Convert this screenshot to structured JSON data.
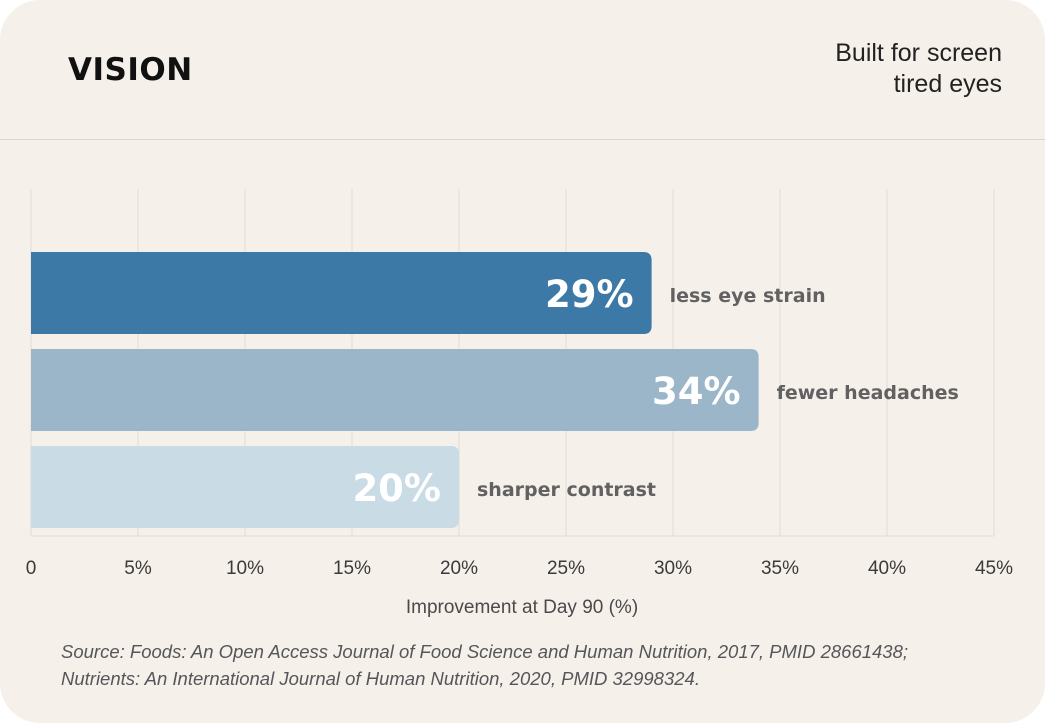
{
  "header": {
    "title": "VISION",
    "tagline": "Built for screen\ntired eyes"
  },
  "footer": {
    "source": "Source: Foods: An Open Access Journal of Food Science and Human Nutrition, 2017, PMID 28661438;\nNutrients: An International Journal of Human Nutrition, 2020, PMID 32998324."
  },
  "colors": {
    "background": "#f5f0ea",
    "grid": "#e3ddd6",
    "bar_text": "#ffffff",
    "label_text": "#616161",
    "axis_text": "#3a3a3a"
  },
  "chart_data": {
    "type": "bar",
    "orientation": "horizontal",
    "xlabel": "Improvement at Day 90 (%)",
    "xlim": [
      0,
      45
    ],
    "xticks": [
      0,
      5,
      10,
      15,
      20,
      25,
      30,
      35,
      40,
      45
    ],
    "xtick_labels": [
      "0",
      "5%",
      "10%",
      "15%",
      "20%",
      "25%",
      "30%",
      "35%",
      "40%",
      "45%"
    ],
    "grid": true,
    "series": [
      {
        "values": [
          29,
          34,
          20
        ]
      }
    ],
    "categories": [
      "less eye strain",
      "fewer headaches",
      "sharper contrast"
    ],
    "value_labels": [
      "29%",
      "34%",
      "20%"
    ],
    "bar_colors": [
      "#3d79a7",
      "#9bb6c8",
      "#c9dce6"
    ]
  }
}
